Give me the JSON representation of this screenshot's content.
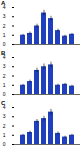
{
  "chart_data": [
    {
      "type": "bar",
      "title": "A",
      "categories": [
        null,
        null,
        null,
        null,
        null,
        null,
        null,
        null
      ],
      "values": [
        1.0,
        1.2,
        2.0,
        3.4,
        2.8,
        1.5,
        0.9,
        1.1
      ],
      "errors": [
        0.1,
        0.15,
        0.2,
        0.3,
        0.25,
        0.15,
        0.1,
        0.1
      ],
      "color": "#1f3fbf",
      "ylim": [
        0,
        4
      ],
      "yticks": [
        0,
        1,
        2,
        3,
        4
      ]
    },
    {
      "type": "bar",
      "title": "B",
      "categories": [
        null,
        null,
        null,
        null,
        null,
        null,
        null,
        null
      ],
      "values": [
        1.0,
        1.4,
        2.6,
        3.0,
        3.2,
        1.0,
        1.1,
        0.9
      ],
      "errors": [
        0.1,
        0.15,
        0.25,
        0.3,
        0.3,
        0.1,
        0.1,
        0.1
      ],
      "color": "#1f3fbf",
      "ylim": [
        0,
        4
      ],
      "yticks": [
        0,
        1,
        2,
        3,
        4
      ]
    },
    {
      "type": "bar",
      "title": "C",
      "categories": [
        null,
        null,
        null,
        null,
        null,
        null,
        null,
        null
      ],
      "values": [
        1.0,
        1.3,
        2.5,
        2.8,
        3.5,
        1.2,
        0.8,
        1.0
      ],
      "errors": [
        0.1,
        0.15,
        0.2,
        0.25,
        0.3,
        0.15,
        0.1,
        0.1
      ],
      "color": "#1f3fbf",
      "ylim": [
        0,
        4
      ],
      "yticks": [
        0,
        1,
        2,
        3,
        4
      ]
    }
  ]
}
